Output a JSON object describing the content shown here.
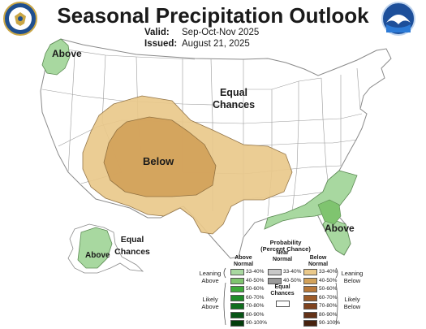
{
  "title": "Seasonal Precipitation Outlook",
  "valid_label": "Valid:",
  "valid_value": "Sep-Oct-Nov 2025",
  "issued_label": "Issued:",
  "issued_value": "August 21, 2025",
  "logos": {
    "left": "doc-seal-icon",
    "right": "noaa-logo-icon",
    "right_text": "NOAA"
  },
  "map_labels": {
    "above_northwest": "Above",
    "equal_chances_main": [
      "Equal",
      "Chances"
    ],
    "below": "Below",
    "above_southeast": "Above",
    "above_alaska": "Above",
    "equal_chances_alaska": [
      "Equal",
      "Chances"
    ]
  },
  "legend": {
    "title": [
      "Probability",
      "(Percent Chance)"
    ],
    "col_above": [
      "Above",
      "Normal"
    ],
    "col_near": [
      "Near",
      "Normal"
    ],
    "col_below": [
      "Below",
      "Normal"
    ],
    "leaning_above": [
      "Leaning",
      "Above"
    ],
    "likely_above": [
      "Likely",
      "Above"
    ],
    "leaning_below": [
      "Leaning",
      "Below"
    ],
    "likely_below": [
      "Likely",
      "Below"
    ],
    "equal_chances": [
      "Equal",
      "Chances"
    ],
    "above_classes": [
      "33-40%",
      "40-50%",
      "50-60%",
      "60-70%",
      "70-80%",
      "80-90%",
      "90-100%"
    ],
    "near_classes": [
      "33-40%",
      "40-50%"
    ],
    "below_classes": [
      "33-40%",
      "40-50%",
      "50-60%",
      "60-70%",
      "70-80%",
      "80-90%",
      "90-100%"
    ],
    "colors_above": [
      "#a8d8a0",
      "#7fc46f",
      "#3daa3a",
      "#1e8c28",
      "#0f6e1e",
      "#075416",
      "#033d0c"
    ],
    "colors_near": [
      "#c8c8c8",
      "#9a9a9a"
    ],
    "colors_below": [
      "#eac98b",
      "#d3a25a",
      "#b9793a",
      "#9c5b29",
      "#7f431f",
      "#643217",
      "#47220f"
    ]
  }
}
